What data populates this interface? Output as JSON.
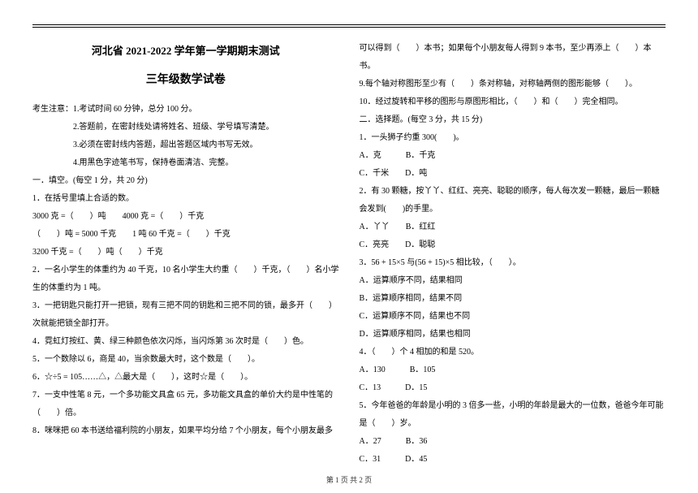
{
  "header": {
    "title_line1": "河北省 2021-2022 学年第一学期期末测试",
    "title_line2": "三年级数学试卷"
  },
  "notice": {
    "label": "考生注意：",
    "items": [
      "1.考试时间 60 分钟，总分 100 分。",
      "2.答题前，在密封线处请将姓名、班级、学号填写清楚。",
      "3.必须在密封线内答题，超出答题区域内书写无效。",
      "4.用黑色字迹笔书写，保持卷面清洁、完整。"
    ]
  },
  "section1": {
    "heading": "一．填空。(每空 1 分，共 20 分)",
    "q1_label": "1．在括号里填上合适的数。",
    "q1_lines": [
      "3000 克 =（　　）吨　　4000 克 =（　　）千克",
      "（　　）吨 = 5000 千克　　1 吨 60 千克 =（　　）千克",
      "3200 千克 =（　　）吨（　　）千克"
    ],
    "q2": "2．一名小学生的体重约为 40 千克，10 名小学生大约重（　　）千克，（　　）名小学生的体重约为 1 吨。",
    "q3": "3．一把钥匙只能打开一把锁，现有三把不同的钥匙和三把不同的锁，最多开（　　）次就能把锁全部打开。",
    "q4": "4．霓虹灯按红、黄、绿三种颜色依次闪烁，当闪烁第 36 次时是（　　）色。",
    "q5": "5．一个数除以 6，商是 40，当余数最大时，这个数是（　　）。",
    "q6": "6．☆÷5 = 105……△，△最大是（　　），这时☆是（　　）。",
    "q7": "7．一支中性笔 8 元，一个多功能文具盒 65 元，多功能文具盒的单价大约是中性笔的（　　）倍。",
    "q8a": "8．咪咪把 60 本书送给福利院的小朋友，如果平均分给 7 个小朋友，每个小朋友最多",
    "q8b": "可以得到（　　）本书；如果每个小朋友每人得到 9 本书，至少再添上（　　）本书。",
    "q9": "9.每个轴对称图形至少有（　　）条对称轴，对称轴两侧的图形能够（　　）。",
    "q10": "10．经过旋转和平移的图形与原图形相比，（　　）和（　　）完全相同。"
  },
  "section2": {
    "heading": "二．选择题。(每空 3 分，共 15 分)",
    "q1": {
      "text": "1．一头狮子约重 300(　　)。",
      "opts": "A．克　　　B．千克",
      "opts2": "C．千米　　D．吨"
    },
    "q2": {
      "text": "2．有 30 颗糖，按丫丫、红红、亮亮、聪聪的顺序，每人每次发一颗糖，最后一颗糖会发到(　　)的手里。",
      "opts": "A．丫丫　　B．红红",
      "opts2": "C．亮亮　　D．聪聪"
    },
    "q3": {
      "text": "3．56 + 15×5 与(56 + 15)×5 相比较，（　　）。",
      "optA": "A．运算顺序不同，结果相同",
      "optB": "B．运算顺序相同，结果不同",
      "optC": "C．运算顺序不同，结果也不同",
      "optD": "D．运算顺序相同，结果也相同"
    },
    "q4": {
      "text": "4．（　　）个 4 相加的和是 520。",
      "opts": "A．130　　　B．105",
      "opts2": "C．13　　　D．15"
    },
    "q5": {
      "text": "5．今年爸爸的年龄是小明的 3 倍多一些，小明的年龄是最大的一位数，爸爸今年可能是（　　）岁。",
      "opts": "A．27　　　B．36",
      "opts2": "C．31　　　D．45"
    }
  },
  "footer": "第 1 页 共 2 页"
}
